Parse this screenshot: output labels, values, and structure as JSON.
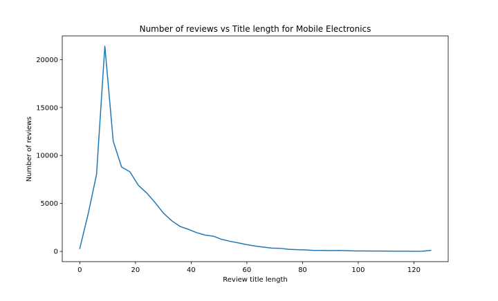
{
  "chart_data": {
    "type": "line",
    "title": "Number of reviews vs Title length for Mobile Electronics",
    "xlabel": "Review title length",
    "ylabel": "Number of reviews",
    "xlim": [
      -6.3,
      132.3
    ],
    "ylim": [
      -1070,
      22470
    ],
    "xticks": [
      0,
      20,
      40,
      60,
      80,
      100,
      120
    ],
    "yticks": [
      0,
      5000,
      10000,
      15000,
      20000
    ],
    "grid": false,
    "series": [
      {
        "color": "#1f77b4",
        "x": [
          0,
          3,
          6,
          9,
          12,
          15,
          18,
          21,
          24,
          27,
          30,
          33,
          36,
          39,
          42,
          45,
          48,
          51,
          54,
          57,
          60,
          63,
          66,
          69,
          72,
          75,
          78,
          81,
          84,
          87,
          90,
          93,
          96,
          99,
          102,
          105,
          108,
          111,
          114,
          117,
          120,
          123,
          126
        ],
        "y": [
          300,
          3900,
          8000,
          21400,
          11500,
          8800,
          8300,
          6900,
          6100,
          5100,
          4000,
          3200,
          2600,
          2300,
          1950,
          1700,
          1580,
          1250,
          1050,
          880,
          700,
          560,
          440,
          340,
          320,
          220,
          180,
          150,
          100,
          100,
          80,
          100,
          70,
          50,
          50,
          40,
          40,
          25,
          20,
          15,
          10,
          20,
          100
        ]
      }
    ]
  }
}
